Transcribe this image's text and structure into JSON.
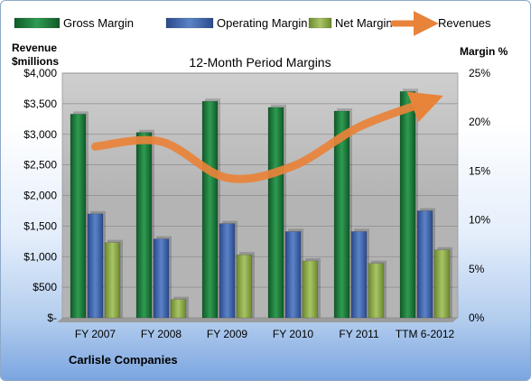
{
  "chart_data": {
    "type": "bar",
    "title": "12-Month Period Margins",
    "company": "Carlisle Companies",
    "ylabel_left_line1": "Revenue",
    "ylabel_left_line2": "$millions",
    "ylabel_right": "Margin %",
    "categories": [
      "FY 2007",
      "FY 2008",
      "FY 2009",
      "FY 2010",
      "FY 2011",
      "TTM 6-2012"
    ],
    "y_left_ticks": [
      "$4,000",
      "$3,500",
      "$3,000",
      "$2,500",
      "$2,000",
      "$1,500",
      "$1,000",
      "$500",
      "$-"
    ],
    "y_right_ticks": [
      "25%",
      "20%",
      "15%",
      "10%",
      "5%",
      "0%"
    ],
    "ylim_left": [
      0,
      4000
    ],
    "ylim_right": [
      0,
      25
    ],
    "series": [
      {
        "name": "Gross Margin",
        "kind": "bar",
        "color": "#1f7a3c",
        "values": [
          3330,
          3030,
          3540,
          3440,
          3380,
          3700
        ]
      },
      {
        "name": "Operating Margin",
        "kind": "bar",
        "color": "#3a5fa8",
        "values": [
          1700,
          1290,
          1540,
          1410,
          1410,
          1750
        ]
      },
      {
        "name": "Net Margin",
        "kind": "bar",
        "color": "#8faa48",
        "values": [
          1230,
          300,
          1030,
          930,
          890,
          1110
        ]
      },
      {
        "name": "Revenues",
        "kind": "line",
        "color": "#e8833a",
        "values": [
          17.5,
          18.0,
          14.3,
          15.5,
          19.5,
          22.0
        ]
      }
    ],
    "grid": true,
    "legend_position": "top"
  }
}
